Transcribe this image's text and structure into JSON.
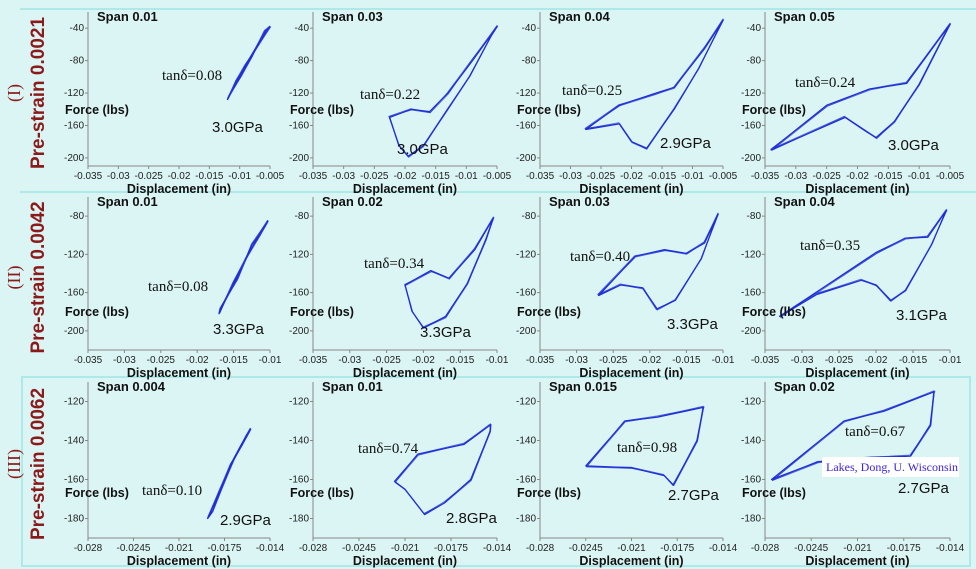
{
  "chart_data": [
    {
      "type": "line",
      "row": "I",
      "span": "Span 0.01",
      "xlabel": "Displacement (in)",
      "ylabel": "Force (lbs)",
      "xlim": [
        -0.035,
        -0.005
      ],
      "ylim": [
        -210,
        -20
      ],
      "xticks": [
        "-0.035",
        "-0.03",
        "-0.025",
        "-0.02",
        "-0.015",
        "-0.01",
        "-0.005"
      ],
      "yticks": [
        "-40",
        "-80",
        "-120",
        "-160",
        "-200"
      ],
      "tan_delta": "tanδ=0.08",
      "modulus": "3.0GPa",
      "loop": [
        [
          -0.012,
          -128
        ],
        [
          -0.0105,
          -105
        ],
        [
          -0.009,
          -85
        ],
        [
          -0.007,
          -60
        ],
        [
          -0.005,
          -38
        ],
        [
          -0.0058,
          -44
        ],
        [
          -0.008,
          -75
        ],
        [
          -0.0098,
          -98
        ],
        [
          -0.0118,
          -124
        ]
      ]
    },
    {
      "type": "line",
      "row": "I",
      "span": "Span 0.03",
      "xlabel": "Displacement (in)",
      "ylabel": "Force (lbs)",
      "xlim": [
        -0.035,
        -0.005
      ],
      "ylim": [
        -210,
        -20
      ],
      "xticks": [
        "-0.035",
        "-0.03",
        "-0.025",
        "-0.02",
        "-0.015",
        "-0.01",
        "-0.005"
      ],
      "yticks": [
        "-40",
        "-80",
        "-120",
        "-160",
        "-200"
      ],
      "tan_delta": "tanδ=0.22",
      "modulus": "3.0GPa",
      "loop": [
        [
          -0.005,
          -38
        ],
        [
          -0.009,
          -80
        ],
        [
          -0.013,
          -120
        ],
        [
          -0.016,
          -143
        ],
        [
          -0.019,
          -140
        ],
        [
          -0.0225,
          -150
        ],
        [
          -0.021,
          -185
        ],
        [
          -0.0195,
          -198
        ],
        [
          -0.017,
          -185
        ],
        [
          -0.013,
          -140
        ],
        [
          -0.0095,
          -100
        ],
        [
          -0.006,
          -50
        ]
      ]
    },
    {
      "type": "line",
      "row": "I",
      "span": "Span 0.04",
      "xlabel": "Displacement (in)",
      "ylabel": "Force (lbs)",
      "xlim": [
        -0.035,
        -0.005
      ],
      "ylim": [
        -210,
        -20
      ],
      "xticks": [
        "-0.035",
        "-0.03",
        "-0.025",
        "-0.02",
        "-0.015",
        "-0.01",
        "-0.005"
      ],
      "yticks": [
        "-40",
        "-80",
        "-120",
        "-160",
        "-200"
      ],
      "tan_delta": "tanδ=0.25",
      "modulus": "2.9GPa",
      "loop": [
        [
          -0.005,
          -30
        ],
        [
          -0.008,
          -65
        ],
        [
          -0.013,
          -113
        ],
        [
          -0.016,
          -120
        ],
        [
          -0.022,
          -135
        ],
        [
          -0.0275,
          -165
        ],
        [
          -0.022,
          -158
        ],
        [
          -0.02,
          -180
        ],
        [
          -0.0175,
          -188
        ],
        [
          -0.013,
          -140
        ],
        [
          -0.009,
          -90
        ]
      ]
    },
    {
      "type": "line",
      "row": "I",
      "span": "Span 0.05",
      "xlabel": "Displacement (in)",
      "ylabel": "Force (lbs)",
      "xlim": [
        -0.035,
        -0.005
      ],
      "ylim": [
        -210,
        -20
      ],
      "xticks": [
        "-0.035",
        "-0.03",
        "-0.025",
        "-0.02",
        "-0.015",
        "-0.01",
        "-0.005"
      ],
      "yticks": [
        "-40",
        "-80",
        "-120",
        "-160",
        "-200"
      ],
      "tan_delta": "tanδ=0.24",
      "modulus": "3.0GPa",
      "loop": [
        [
          -0.005,
          -35
        ],
        [
          -0.012,
          -108
        ],
        [
          -0.018,
          -115
        ],
        [
          -0.025,
          -135
        ],
        [
          -0.034,
          -190
        ],
        [
          -0.022,
          -150
        ],
        [
          -0.0185,
          -168
        ],
        [
          -0.017,
          -175
        ],
        [
          -0.014,
          -155
        ],
        [
          -0.01,
          -110
        ]
      ]
    },
    {
      "type": "line",
      "row": "II",
      "span": "Span 0.01",
      "xlabel": "Displacement (in)",
      "ylabel": "Force (lbs)",
      "xlim": [
        -0.035,
        -0.01
      ],
      "ylim": [
        -220,
        -60
      ],
      "xticks": [
        "-0.035",
        "-0.03",
        "-0.025",
        "-0.02",
        "-0.015",
        "-0.01"
      ],
      "yticks": [
        "-80",
        "-120",
        "-160",
        "-200"
      ],
      "tan_delta": "tanδ=0.08",
      "modulus": "3.3GPa",
      "loop": [
        [
          -0.017,
          -182
        ],
        [
          -0.015,
          -150
        ],
        [
          -0.013,
          -120
        ],
        [
          -0.0115,
          -100
        ],
        [
          -0.0103,
          -85
        ],
        [
          -0.0108,
          -92
        ],
        [
          -0.0125,
          -110
        ],
        [
          -0.0145,
          -145
        ],
        [
          -0.0168,
          -176
        ]
      ]
    },
    {
      "type": "line",
      "row": "II",
      "span": "Span 0.02",
      "xlabel": "Displacement (in)",
      "ylabel": "Force (lbs)",
      "xlim": [
        -0.035,
        -0.01
      ],
      "ylim": [
        -220,
        -60
      ],
      "xticks": [
        "-0.035",
        "-0.03",
        "-0.025",
        "-0.02",
        "-0.015",
        "-0.01"
      ],
      "yticks": [
        "-80",
        "-120",
        "-160",
        "-200"
      ],
      "tan_delta": "tanδ=0.34",
      "modulus": "3.3GPa",
      "loop": [
        [
          -0.0105,
          -82
        ],
        [
          -0.013,
          -115
        ],
        [
          -0.0165,
          -145
        ],
        [
          -0.019,
          -137
        ],
        [
          -0.0225,
          -152
        ],
        [
          -0.0215,
          -180
        ],
        [
          -0.02,
          -197
        ],
        [
          -0.017,
          -185
        ],
        [
          -0.014,
          -150
        ],
        [
          -0.0115,
          -105
        ]
      ]
    },
    {
      "type": "line",
      "row": "II",
      "span": "Span 0.03",
      "xlabel": "Displacement (in)",
      "ylabel": "Force (lbs)",
      "xlim": [
        -0.035,
        -0.01
      ],
      "ylim": [
        -220,
        -60
      ],
      "xticks": [
        "-0.035",
        "-0.03",
        "-0.025",
        "-0.02",
        "-0.015",
        "-0.01"
      ],
      "yticks": [
        "-80",
        "-120",
        "-160",
        "-200"
      ],
      "tan_delta": "tanδ=0.40",
      "modulus": "3.3GPa",
      "loop": [
        [
          -0.0107,
          -78
        ],
        [
          -0.0125,
          -108
        ],
        [
          -0.015,
          -119
        ],
        [
          -0.018,
          -115
        ],
        [
          -0.022,
          -122
        ],
        [
          -0.027,
          -163
        ],
        [
          -0.024,
          -152
        ],
        [
          -0.021,
          -155
        ],
        [
          -0.019,
          -177
        ],
        [
          -0.0165,
          -168
        ],
        [
          -0.013,
          -125
        ]
      ]
    },
    {
      "type": "line",
      "row": "II",
      "span": "Span 0.04",
      "xlabel": "Displacement (in)",
      "ylabel": "Force (lbs)",
      "xlim": [
        -0.035,
        -0.01
      ],
      "ylim": [
        -220,
        -60
      ],
      "xticks": [
        "-0.035",
        "-0.03",
        "-0.025",
        "-0.02",
        "-0.015",
        "-0.01"
      ],
      "yticks": [
        "-80",
        "-120",
        "-160",
        "-200"
      ],
      "tan_delta": "tanδ=0.35",
      "modulus": "3.1GPa",
      "loop": [
        [
          -0.0105,
          -74
        ],
        [
          -0.013,
          -102
        ],
        [
          -0.016,
          -103
        ],
        [
          -0.02,
          -118
        ],
        [
          -0.033,
          -185
        ],
        [
          -0.028,
          -162
        ],
        [
          -0.022,
          -147
        ],
        [
          -0.02,
          -152
        ],
        [
          -0.018,
          -168
        ],
        [
          -0.016,
          -158
        ],
        [
          -0.0125,
          -110
        ]
      ]
    },
    {
      "type": "line",
      "row": "III",
      "span": "Span 0.004",
      "xlabel": "Displacement (in)",
      "ylabel": "Force (lbs)",
      "xlim": [
        -0.028,
        -0.014
      ],
      "ylim": [
        -190,
        -110
      ],
      "xticks": [
        "-0.028",
        "-0.0245",
        "-0.021",
        "-0.0175",
        "-0.014"
      ],
      "yticks": [
        "-120",
        "-140",
        "-160",
        "-180"
      ],
      "tan_delta": "tanδ=0.10",
      "modulus": "2.9GPa",
      "loop": [
        [
          -0.0188,
          -180
        ],
        [
          -0.0178,
          -165
        ],
        [
          -0.017,
          -152
        ],
        [
          -0.0162,
          -142
        ],
        [
          -0.0155,
          -134
        ],
        [
          -0.0158,
          -138
        ],
        [
          -0.0168,
          -150
        ],
        [
          -0.0176,
          -162
        ],
        [
          -0.0184,
          -176
        ]
      ]
    },
    {
      "type": "line",
      "row": "III",
      "span": "Span 0.01",
      "xlabel": "Displacement (in)",
      "ylabel": "Force (lbs)",
      "xlim": [
        -0.028,
        -0.014
      ],
      "ylim": [
        -190,
        -110
      ],
      "xticks": [
        "-0.028",
        "-0.0245",
        "-0.021",
        "-0.0175",
        "-0.014"
      ],
      "yticks": [
        "-120",
        "-140",
        "-160",
        "-180"
      ],
      "tan_delta": "tanδ=0.74",
      "modulus": "2.8GPa",
      "loop": [
        [
          -0.0145,
          -132
        ],
        [
          -0.0165,
          -142
        ],
        [
          -0.02,
          -147
        ],
        [
          -0.0218,
          -161
        ],
        [
          -0.021,
          -165
        ],
        [
          -0.0195,
          -178
        ],
        [
          -0.018,
          -172
        ],
        [
          -0.016,
          -160
        ],
        [
          -0.0145,
          -135
        ]
      ]
    },
    {
      "type": "line",
      "row": "III",
      "span": "Span 0.015",
      "xlabel": "Displacement (in)",
      "ylabel": "Force (lbs)",
      "xlim": [
        -0.028,
        -0.014
      ],
      "ylim": [
        -190,
        -110
      ],
      "xticks": [
        "-0.028",
        "-0.0245",
        "-0.021",
        "-0.0175",
        "-0.014"
      ],
      "yticks": [
        "-120",
        "-140",
        "-160",
        "-180"
      ],
      "tan_delta": "tanδ=0.98",
      "modulus": "2.7GPa",
      "loop": [
        [
          -0.0155,
          -123
        ],
        [
          -0.019,
          -128
        ],
        [
          -0.0215,
          -130
        ],
        [
          -0.0245,
          -153
        ],
        [
          -0.021,
          -154
        ],
        [
          -0.0185,
          -158
        ],
        [
          -0.0178,
          -163
        ],
        [
          -0.016,
          -140
        ],
        [
          -0.0155,
          -123
        ]
      ]
    },
    {
      "type": "line",
      "row": "III",
      "span": "Span 0.02",
      "xlabel": "Displacement (in)",
      "ylabel": "Force (lbs)",
      "xlim": [
        -0.028,
        -0.014
      ],
      "ylim": [
        -190,
        -110
      ],
      "xticks": [
        "-0.028",
        "-0.0245",
        "-0.021",
        "-0.0175",
        "-0.014"
      ],
      "yticks": [
        "-120",
        "-140",
        "-160",
        "-180"
      ],
      "tan_delta": "tanδ=0.67",
      "modulus": "2.7GPa",
      "loop": [
        [
          -0.0152,
          -115
        ],
        [
          -0.019,
          -125
        ],
        [
          -0.022,
          -130
        ],
        [
          -0.0275,
          -160
        ],
        [
          -0.024,
          -151
        ],
        [
          -0.02,
          -149
        ],
        [
          -0.017,
          -148
        ],
        [
          -0.0155,
          -132
        ],
        [
          -0.0152,
          -115
        ]
      ]
    }
  ],
  "rows": [
    {
      "numeral": "(I)",
      "label": "Pre-strain 0.0021"
    },
    {
      "numeral": "(II)",
      "label": "Pre-strain 0.0042"
    },
    {
      "numeral": "(III)",
      "label": "Pre-strain 0.0062"
    }
  ],
  "credit": "Lakes, Dong, U. Wisconsin",
  "colors": {
    "background": "#dbf5f4",
    "loop": "#1f2fd6",
    "row_label": "#8b1a1a",
    "credit": "#3a1fe6"
  }
}
